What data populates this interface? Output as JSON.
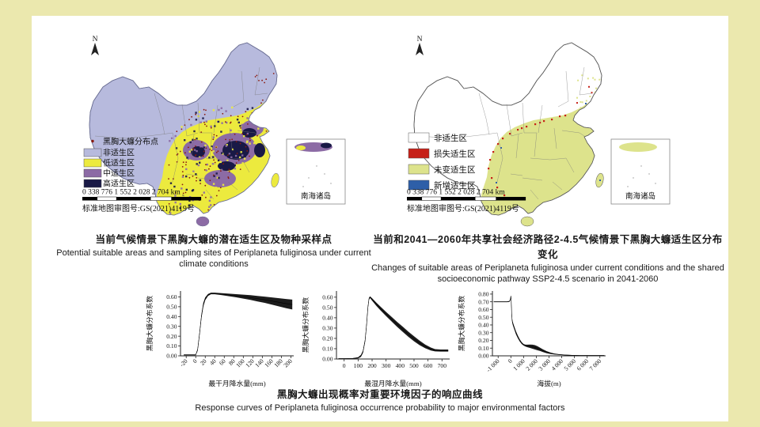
{
  "colors": {
    "slide_bg": "#ebe8ae",
    "panel": "#ffffff",
    "unsuitable": "#b7badd",
    "low": "#ecea3e",
    "mid": "#8c6ba5",
    "high": "#191946",
    "point": "#8b1a10",
    "lost": "#c62018",
    "unchanged": "#dde38c",
    "added": "#2e5fa8",
    "text": "#1a1a1a"
  },
  "map_shared": {
    "north_label": "N",
    "scale_text": "0 338 776  1 552 2 028  2 704 km",
    "license": "标准地图审图号:GS(2021)4119号",
    "inset_label": "南海诸岛"
  },
  "maps": {
    "left": {
      "legend": [
        {
          "label": "黑胸大蠊分布点"
        },
        {
          "label": "非适生区"
        },
        {
          "label": "低适生区"
        },
        {
          "label": "中适生区"
        },
        {
          "label": "高适生区"
        }
      ]
    },
    "right": {
      "legend": [
        {
          "label": "非适生区"
        },
        {
          "label": "损失适生区"
        },
        {
          "label": "未变适生区"
        },
        {
          "label": "新增适生区"
        }
      ]
    }
  },
  "captions": {
    "left_zh": "当前气候情景下黑胸大蠊的潜在适生区及物种采样点",
    "left_en": "Potential suitable areas and sampling sites of Periplaneta fuliginosa under current climate conditions",
    "right_zh": "当前和2041—2060年共享社会经济路径2-4.5气候情景下黑胸大蠊适生区分布变化",
    "right_en": "Changes of suitable areas of Periplaneta fuliginosa under current conditions and the shared socioeconomic pathway SSP2-4.5 scenario in 2041-2060",
    "bottom_zh": "黑胸大蠊出现概率对重要环境因子的响应曲线",
    "bottom_en": "Response curves of Periplaneta fuliginosa occurrence probability to major environmental factors"
  },
  "chart_data": [
    {
      "type": "line",
      "title": "",
      "xlabel": "最干月降水量(mm)",
      "ylabel": "黑胸大蠊分布系数",
      "xlim": [
        -32,
        206
      ],
      "ylim": [
        0,
        0.66
      ],
      "xticks": [
        -20,
        0,
        20,
        40,
        60,
        80,
        100,
        120,
        140,
        160,
        180,
        200
      ],
      "xtick_labels": [
        "-20",
        "0",
        "20",
        "40",
        "60",
        "80",
        "100",
        "120",
        "140",
        "160",
        "180",
        "200"
      ],
      "yticks": [
        0,
        0.1,
        0.2,
        0.3,
        0.4,
        0.5,
        0.6
      ],
      "rotate_xticks": true,
      "points": [
        [
          -25,
          0.01,
          0.004
        ],
        [
          0,
          0.01,
          0.004
        ],
        [
          4,
          0.06,
          0.01
        ],
        [
          8,
          0.22,
          0.015
        ],
        [
          12,
          0.4,
          0.02
        ],
        [
          16,
          0.52,
          0.02
        ],
        [
          20,
          0.58,
          0.015
        ],
        [
          26,
          0.62,
          0.01
        ],
        [
          32,
          0.635,
          0.008
        ],
        [
          40,
          0.635,
          0.008
        ],
        [
          55,
          0.628,
          0.01
        ],
        [
          70,
          0.62,
          0.013
        ],
        [
          85,
          0.612,
          0.016
        ],
        [
          100,
          0.603,
          0.02
        ],
        [
          115,
          0.593,
          0.024
        ],
        [
          130,
          0.582,
          0.028
        ],
        [
          145,
          0.571,
          0.032
        ],
        [
          160,
          0.558,
          0.037
        ],
        [
          175,
          0.545,
          0.042
        ],
        [
          190,
          0.532,
          0.047
        ],
        [
          203,
          0.522,
          0.05
        ]
      ]
    },
    {
      "type": "line",
      "title": "",
      "xlabel": "最湿月降水量(mm)",
      "ylabel": "黑胸大蠊分布系数",
      "xlim": [
        -55,
        755
      ],
      "ylim": [
        0,
        0.66
      ],
      "xticks": [
        0,
        100,
        200,
        300,
        400,
        500,
        600,
        700
      ],
      "xtick_labels": [
        "0",
        "100",
        "200",
        "300",
        "400",
        "500",
        "600",
        "700"
      ],
      "yticks": [
        0,
        0.1,
        0.2,
        0.3,
        0.4,
        0.5,
        0.6
      ],
      "rotate_xticks": false,
      "points": [
        [
          -40,
          0.004,
          0.003
        ],
        [
          0,
          0.004,
          0.003
        ],
        [
          60,
          0.005,
          0.003
        ],
        [
          100,
          0.012,
          0.006
        ],
        [
          120,
          0.03,
          0.01
        ],
        [
          135,
          0.07,
          0.012
        ],
        [
          150,
          0.18,
          0.015
        ],
        [
          160,
          0.33,
          0.018
        ],
        [
          170,
          0.5,
          0.015
        ],
        [
          178,
          0.585,
          0.01
        ],
        [
          185,
          0.6,
          0.008
        ],
        [
          200,
          0.578,
          0.012
        ],
        [
          230,
          0.532,
          0.016
        ],
        [
          260,
          0.49,
          0.018
        ],
        [
          300,
          0.437,
          0.02
        ],
        [
          340,
          0.386,
          0.022
        ],
        [
          380,
          0.335,
          0.024
        ],
        [
          420,
          0.287,
          0.025
        ],
        [
          460,
          0.24,
          0.025
        ],
        [
          500,
          0.196,
          0.024
        ],
        [
          540,
          0.156,
          0.022
        ],
        [
          580,
          0.122,
          0.018
        ],
        [
          620,
          0.097,
          0.014
        ],
        [
          650,
          0.085,
          0.011
        ],
        [
          690,
          0.082,
          0.01
        ],
        [
          745,
          0.082,
          0.01
        ]
      ]
    },
    {
      "type": "line",
      "title": "",
      "xlabel": "海拔(m)",
      "ylabel": "黑胸大蠊分布系数",
      "xlim": [
        -1450,
        7450
      ],
      "ylim": [
        0,
        0.84
      ],
      "xticks": [
        -1000,
        0,
        1000,
        2000,
        3000,
        4000,
        5000,
        6000,
        7000
      ],
      "xtick_labels": [
        "-1 000",
        "0",
        "1 000",
        "2 000",
        "3 000",
        "4 000",
        "5 000",
        "6 000",
        "7 000"
      ],
      "yticks": [
        0,
        0.1,
        0.2,
        0.3,
        0.4,
        0.5,
        0.6,
        0.7,
        0.8
      ],
      "rotate_xticks": true,
      "points": [
        [
          -1350,
          0.7,
          0.004
        ],
        [
          -1000,
          0.7,
          0.004
        ],
        [
          -300,
          0.7,
          0.004
        ],
        [
          -120,
          0.705,
          0.006
        ],
        [
          -40,
          0.73,
          0.01
        ],
        [
          0,
          0.775,
          0.008
        ],
        [
          30,
          0.7,
          0.02
        ],
        [
          60,
          0.55,
          0.025
        ],
        [
          100,
          0.46,
          0.022
        ],
        [
          150,
          0.42,
          0.02
        ],
        [
          250,
          0.37,
          0.02
        ],
        [
          400,
          0.3,
          0.02
        ],
        [
          550,
          0.245,
          0.018
        ],
        [
          700,
          0.2,
          0.015
        ],
        [
          850,
          0.165,
          0.012
        ],
        [
          1000,
          0.143,
          0.01
        ],
        [
          1150,
          0.132,
          0.012
        ],
        [
          1300,
          0.128,
          0.016
        ],
        [
          1500,
          0.124,
          0.022
        ],
        [
          1700,
          0.118,
          0.026
        ],
        [
          1900,
          0.11,
          0.028
        ],
        [
          2100,
          0.098,
          0.026
        ],
        [
          2300,
          0.084,
          0.022
        ],
        [
          2500,
          0.068,
          0.018
        ],
        [
          2800,
          0.048,
          0.013
        ],
        [
          3100,
          0.034,
          0.009
        ],
        [
          3400,
          0.024,
          0.007
        ],
        [
          3800,
          0.016,
          0.005
        ],
        [
          4200,
          0.011,
          0.004
        ],
        [
          4800,
          0.007,
          0.003
        ],
        [
          5500,
          0.005,
          0.003
        ],
        [
          6200,
          0.004,
          0.003
        ],
        [
          7350,
          0.004,
          0.003
        ]
      ]
    }
  ]
}
